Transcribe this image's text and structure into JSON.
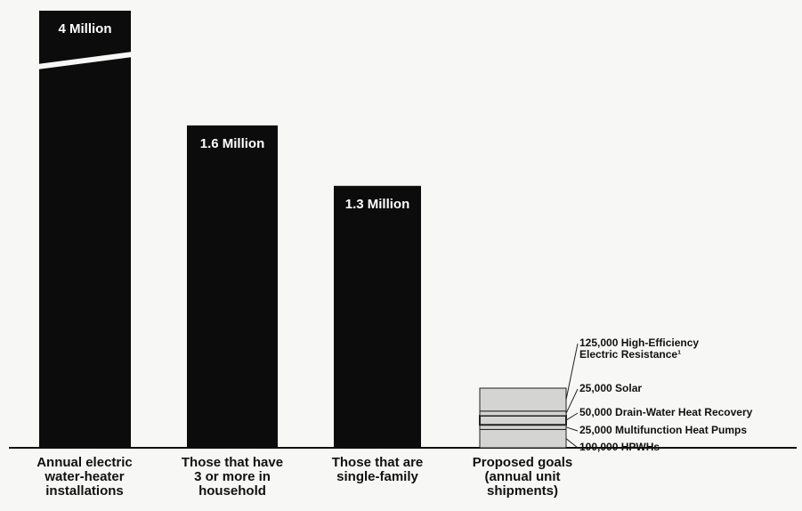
{
  "chart_data": {
    "type": "bar",
    "categories": [
      "Annual electric\nwater-heater\ninstallations",
      "Those that have\n3 or more in\nhousehold",
      "Those that are\nsingle-family",
      "Proposed goals\n(annual unit\nshipments)"
    ],
    "values": [
      4000000,
      1600000,
      1300000,
      325000
    ],
    "data_labels": [
      "4 Million",
      "1.6 Million",
      "1.3 Million",
      ""
    ],
    "axis_break": {
      "bar_index": 0
    },
    "stacked_goal": {
      "segments": [
        {
          "label": "100,000 HPWHs",
          "value": 100000
        },
        {
          "label": "25,000 Multifunction Heat Pumps",
          "value": 25000
        },
        {
          "label": "50,000 Drain-Water Heat Recovery",
          "value": 50000
        },
        {
          "label": "25,000 Solar",
          "value": 25000
        },
        {
          "label": "125,000 High-Efficiency\nElectric Resistance¹",
          "value": 125000
        }
      ]
    },
    "title": "",
    "xlabel": "",
    "ylabel": "",
    "ylim": [
      0,
      1900000
    ],
    "grid": false,
    "legend": "none",
    "colors": {
      "bar": "#0c0c0c",
      "goal_fill": "#d4d4d2",
      "background": "#f7f7f5",
      "text": "#111111"
    }
  }
}
